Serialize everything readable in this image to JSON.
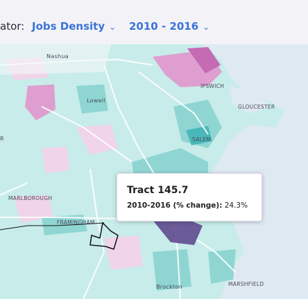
{
  "toolbar": {
    "indicator_label": "ator:",
    "indicator_value": "Jobs Density",
    "period_value": "2010 - 2016"
  },
  "icons": {
    "indicator_chevron": "chevron-down-icon",
    "period_chevron": "chevron-down-icon"
  },
  "map": {
    "places": {
      "nashua": "Nashua",
      "lowell": "Lowell",
      "ipswich": "IPSWICH",
      "gloucester": "GLOUCESTER",
      "salem": "SALEM",
      "marlborough": "MARLBOROUGH",
      "framingham": "FRAMINGHAM",
      "brockton": "Brockton",
      "marshfield": "MARSHFIELD",
      "edge_letter": "R"
    },
    "colors": {
      "ocean": "#dfe9f2",
      "teal_light": "#c8ecea",
      "teal_mid": "#8fd6d3",
      "teal_dark": "#49b8b8",
      "pink_light": "#f0d4ea",
      "pink_mid": "#de9fd0",
      "pink_dark": "#c46bb3",
      "highlight": "#5f4a8f",
      "accent": "#3b73d8"
    }
  },
  "tooltip": {
    "title": "Tract 145.7",
    "row_label": "2010-2016 (% change):",
    "row_value": "24.3%"
  }
}
